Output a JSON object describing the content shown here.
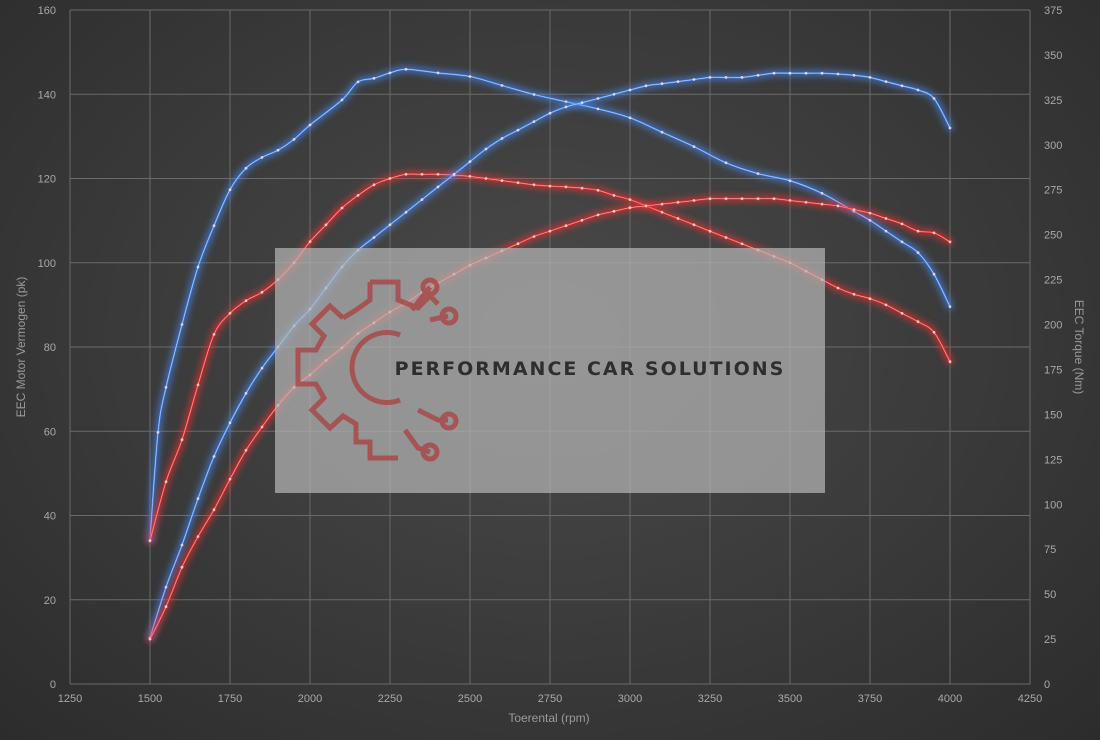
{
  "chart_data": {
    "type": "line",
    "xlabel": "Toerental (rpm)",
    "ylabel_left": "EEC Motor Vermogen (pk)",
    "ylabel_right": "EEC Torque (Nm)",
    "xlim": [
      1250,
      4250
    ],
    "ylim_left": [
      0,
      160
    ],
    "ylim_right": [
      0,
      375
    ],
    "x_ticks": [
      "1250",
      "1500",
      "1750",
      "2000",
      "2250",
      "2500",
      "2750",
      "3000",
      "3250",
      "3500",
      "3750",
      "4000",
      "4250"
    ],
    "y_left_ticks": [
      "0",
      "20",
      "40",
      "60",
      "80",
      "100",
      "120",
      "140",
      "160"
    ],
    "y_right_ticks": [
      "0",
      "25",
      "50",
      "75",
      "100",
      "125",
      "150",
      "175",
      "200",
      "225",
      "250",
      "275",
      "300",
      "325",
      "350",
      "375"
    ],
    "grid": true,
    "watermark": "PERFORMANCE CAR SOLUTIONS",
    "series": [
      {
        "axis": "right",
        "color": "#4a90ff",
        "x": [
          1500,
          1525,
          1550,
          1600,
          1650,
          1700,
          1750,
          1800,
          1850,
          1900,
          1950,
          2000,
          2100,
          2150,
          2200,
          2250,
          2300,
          2400,
          2500,
          2600,
          2700,
          2800,
          2900,
          3000,
          3100,
          3200,
          3300,
          3400,
          3500,
          3600,
          3700,
          3750,
          3800,
          3850,
          3900,
          3950,
          4000
        ],
        "values": [
          80,
          140,
          165,
          200,
          232,
          255,
          275,
          287,
          293,
          297,
          303,
          311,
          325,
          335,
          337,
          340,
          342,
          340,
          338,
          333,
          328,
          324,
          320,
          315,
          307,
          299,
          290,
          284,
          280,
          273,
          263,
          258,
          252,
          246,
          240,
          228,
          210
        ]
      },
      {
        "axis": "left",
        "color": "#ff3030",
        "x": [
          1500,
          1550,
          1600,
          1650,
          1700,
          1750,
          1800,
          1850,
          1900,
          1950,
          2000,
          2050,
          2100,
          2150,
          2200,
          2250,
          2300,
          2350,
          2400,
          2450,
          2500,
          2550,
          2600,
          2650,
          2700,
          2750,
          2800,
          2850,
          2900,
          2950,
          3000,
          3050,
          3100,
          3150,
          3200,
          3250,
          3300,
          3350,
          3400,
          3450,
          3500,
          3550,
          3600,
          3650,
          3700,
          3750,
          3800,
          3850,
          3900,
          3950,
          4000
        ],
        "values": [
          34,
          48,
          58,
          71,
          83,
          88,
          91,
          93,
          96,
          100,
          105,
          109,
          113,
          116,
          118.5,
          120,
          121,
          121,
          121,
          120.8,
          120.5,
          120,
          119.5,
          119,
          118.5,
          118.2,
          118,
          117.7,
          117.2,
          116,
          115,
          113.5,
          112,
          110.5,
          109,
          107.5,
          106,
          104.5,
          103,
          101.5,
          100,
          98,
          96,
          94,
          92.5,
          91.5,
          90,
          88,
          86,
          83.5,
          76.5
        ]
      },
      {
        "axis": "left",
        "color": "#4a90ff",
        "x": [
          1500,
          1550,
          1600,
          1650,
          1700,
          1750,
          1800,
          1850,
          1900,
          1950,
          2000,
          2050,
          2100,
          2150,
          2200,
          2250,
          2300,
          2350,
          2400,
          2450,
          2500,
          2550,
          2600,
          2650,
          2700,
          2750,
          2800,
          2850,
          2900,
          2950,
          3000,
          3050,
          3100,
          3150,
          3200,
          3250,
          3300,
          3350,
          3400,
          3450,
          3500,
          3550,
          3600,
          3650,
          3700,
          3750,
          3800,
          3850,
          3900,
          3950,
          4000
        ],
        "values": [
          11,
          23,
          33,
          44,
          54,
          62,
          69,
          75,
          80,
          85,
          89,
          94,
          99,
          103,
          106,
          109,
          112,
          115,
          118,
          121,
          124,
          127,
          129.5,
          131.5,
          133.5,
          135.5,
          137,
          138,
          139,
          140,
          141,
          142,
          142.5,
          143,
          143.5,
          144,
          144,
          144,
          144.5,
          145,
          145,
          145,
          145,
          144.8,
          144.5,
          144,
          143,
          142,
          141,
          139,
          132
        ]
      },
      {
        "axis": "right",
        "color": "#ff3030",
        "x": [
          1500,
          1550,
          1600,
          1650,
          1700,
          1750,
          1800,
          1850,
          1900,
          1950,
          2000,
          2050,
          2100,
          2150,
          2200,
          2250,
          2300,
          2350,
          2400,
          2450,
          2500,
          2550,
          2600,
          2650,
          2700,
          2750,
          2800,
          2850,
          2900,
          2950,
          3000,
          3050,
          3100,
          3150,
          3200,
          3250,
          3300,
          3350,
          3400,
          3450,
          3500,
          3550,
          3600,
          3650,
          3700,
          3750,
          3800,
          3850,
          3900,
          3950,
          4000
        ],
        "values": [
          25,
          43,
          65,
          82,
          97,
          114,
          130,
          143,
          155,
          165,
          172,
          180,
          187,
          195,
          201,
          207,
          212,
          218,
          223,
          228,
          233,
          237,
          241,
          245,
          249,
          252,
          255,
          258,
          261,
          263,
          265,
          266,
          267,
          268,
          269,
          270,
          270,
          270,
          270,
          270,
          269,
          268,
          267,
          266,
          264,
          262,
          259,
          256,
          252,
          251,
          246
        ]
      }
    ]
  }
}
